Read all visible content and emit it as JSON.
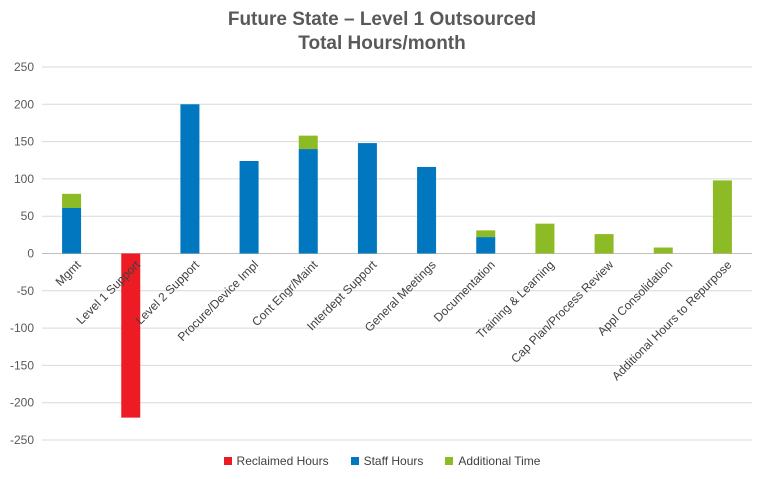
{
  "chart_data": {
    "type": "bar",
    "stacked": true,
    "title": "Future State – Level 1 Outsourced",
    "subtitle": "Total Hours/month",
    "categories": [
      "Mgmt",
      "Level 1 Support",
      "Level 2 Support",
      "Procure/Device Impl",
      "Cont Engr/Maint",
      "Interdept Support",
      "General Meetings",
      "Documentation",
      "Training & Learning",
      "Cap Plan/Process Review",
      "Appl Consolidation",
      "Additional Hours to Repurpose"
    ],
    "series": [
      {
        "name": "Reclaimed Hours",
        "color": "#ed1c24",
        "values": [
          0,
          -220,
          0,
          0,
          0,
          0,
          0,
          0,
          0,
          0,
          0,
          0
        ]
      },
      {
        "name": "Staff Hours",
        "color": "#0077be",
        "values": [
          61,
          0,
          200,
          124,
          140,
          148,
          116,
          22,
          0,
          0,
          0,
          0
        ]
      },
      {
        "name": "Additional Time",
        "color": "#8dbb25",
        "values": [
          19,
          0,
          0,
          0,
          18,
          0,
          0,
          9,
          40,
          26,
          8,
          98
        ]
      }
    ],
    "ylim": [
      -250,
      250
    ],
    "yticks": [
      250,
      200,
      150,
      100,
      50,
      0,
      -50,
      -100,
      -150,
      -200,
      -250
    ],
    "grid": true,
    "legend": "bottom"
  }
}
